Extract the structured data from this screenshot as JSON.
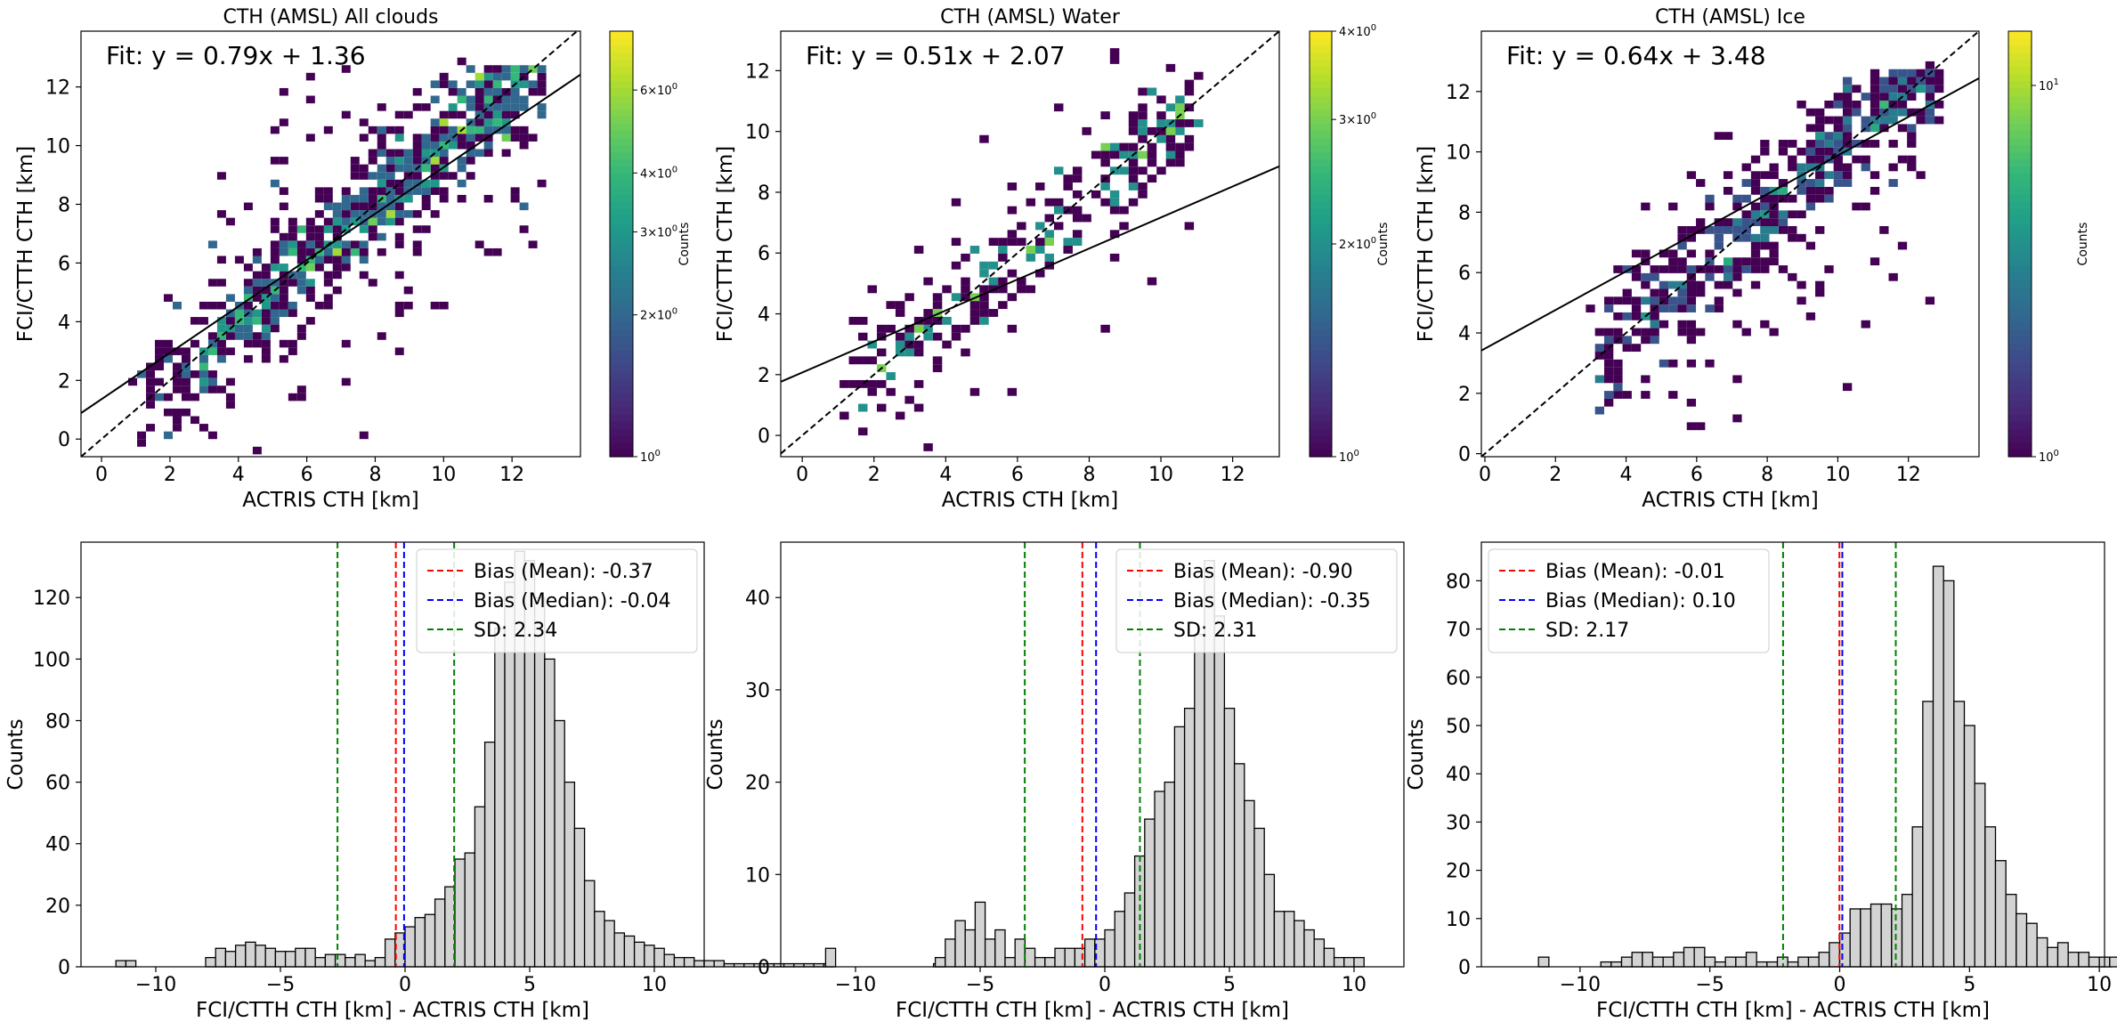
{
  "chart_data": [
    {
      "type": "heatmap",
      "title": "CTH (AMSL) All clouds",
      "xlabel": "ACTRIS CTH [km]",
      "ylabel": "FCI/CTTH CTH [km]",
      "xlim": [
        -0.6,
        14.0
      ],
      "ylim": [
        -0.6,
        13.9
      ],
      "xticks": [
        0,
        2,
        4,
        6,
        8,
        10,
        12
      ],
      "yticks": [
        0,
        2,
        4,
        6,
        8,
        10,
        12
      ],
      "fit": {
        "label": "Fit: y = 0.79x + 1.36",
        "slope": 0.79,
        "intercept": 1.36
      },
      "colorbar": {
        "label": "Counts",
        "scale": "log",
        "min": 1,
        "max": 8,
        "ticks": [
          1,
          2,
          3,
          4,
          6
        ],
        "tick_labels": [
          "10^0",
          "2×10^0",
          "3×10^0",
          "4×10^0",
          "6×10^0"
        ]
      },
      "cluster": {
        "n": 900,
        "xmin": 1.0,
        "xmax": 13.0,
        "noise_sd": 1.4
      }
    },
    {
      "type": "heatmap",
      "title": "CTH (AMSL) Water",
      "xlabel": "ACTRIS CTH [km]",
      "ylabel": "FCI/CTTH CTH [km]",
      "xlim": [
        -0.6,
        13.3
      ],
      "ylim": [
        -0.7,
        13.3
      ],
      "xticks": [
        0,
        2,
        4,
        6,
        8,
        10,
        12
      ],
      "yticks": [
        0,
        2,
        4,
        6,
        8,
        10,
        12
      ],
      "fit": {
        "label": "Fit: y = 0.51x + 2.07",
        "slope": 0.51,
        "intercept": 2.07
      },
      "colorbar": {
        "label": "Counts",
        "scale": "log",
        "min": 1,
        "max": 4,
        "ticks": [
          1,
          2,
          3,
          4
        ],
        "tick_labels": [
          "10^0",
          "2×10^0",
          "3×10^0",
          "4×10^0"
        ]
      },
      "cluster": {
        "n": 300,
        "xmin": 1.0,
        "xmax": 11.0,
        "noise_sd": 1.3
      }
    },
    {
      "type": "heatmap",
      "title": "CTH (AMSL) Ice",
      "xlabel": "ACTRIS CTH [km]",
      "ylabel": "FCI/CTTH CTH [km]",
      "xlim": [
        -0.1,
        14.0
      ],
      "ylim": [
        -0.1,
        14.0
      ],
      "xticks": [
        0,
        2,
        4,
        6,
        8,
        10,
        12
      ],
      "yticks": [
        0,
        2,
        4,
        6,
        8,
        10,
        12
      ],
      "fit": {
        "label": "Fit: y = 0.64x + 3.48",
        "slope": 0.64,
        "intercept": 3.48
      },
      "colorbar": {
        "label": "Counts",
        "scale": "log",
        "min": 1,
        "max": 14,
        "ticks": [
          1,
          10
        ],
        "tick_labels": [
          "10^0",
          "10^1"
        ]
      },
      "cluster": {
        "n": 600,
        "xmin": 3.0,
        "xmax": 13.0,
        "noise_sd": 1.4
      }
    },
    {
      "type": "bar",
      "xlabel": "FCI/CTTH CTH [km] - ACTRIS CTH [km]",
      "ylabel": "Counts",
      "xlim": [
        -13.0,
        12.0
      ],
      "ylim": [
        0,
        138
      ],
      "xticks": [
        -10,
        -5,
        0,
        5,
        10
      ],
      "yticks": [
        0,
        20,
        40,
        60,
        80,
        100,
        120
      ],
      "bin_width": 0.4,
      "bin_start": -11.6,
      "counts": [
        2,
        2,
        0,
        0,
        0,
        0,
        0,
        0,
        0,
        3,
        6,
        5,
        7,
        8,
        7,
        6,
        5,
        5,
        6,
        6,
        3,
        4,
        4,
        3,
        4,
        2,
        3,
        9,
        11,
        13,
        16,
        17,
        22,
        26,
        35,
        37,
        52,
        73,
        110,
        125,
        135,
        132,
        120,
        100,
        80,
        60,
        45,
        28,
        18,
        15,
        11,
        10,
        8,
        7,
        6,
        4,
        3,
        3,
        2,
        2,
        2,
        1,
        1,
        1,
        1,
        1,
        1,
        1,
        1,
        1,
        1,
        1,
        0,
        0,
        0,
        0,
        0,
        0,
        0,
        0,
        0,
        0,
        1
      ],
      "bias_mean": -0.37,
      "bias_median": -0.04,
      "sd": 2.34,
      "legend": [
        "Bias (Mean): -0.37",
        "Bias (Median): -0.04",
        "SD: 2.34"
      ],
      "legend_position": "top-right"
    },
    {
      "type": "bar",
      "xlabel": "FCI/CTTH CTH [km] - ACTRIS CTH [km]",
      "ylabel": "Counts",
      "xlim": [
        -13.0,
        12.0
      ],
      "ylim": [
        0,
        46
      ],
      "xticks": [
        -10,
        -5,
        0,
        5,
        10
      ],
      "yticks": [
        0,
        10,
        20,
        30,
        40
      ],
      "bin_width": 0.4,
      "bin_start": -11.2,
      "counts": [
        2,
        0,
        0,
        0,
        0,
        0,
        0,
        0,
        0,
        0,
        0,
        1,
        3,
        5,
        4,
        7,
        3,
        4,
        1,
        3,
        2,
        1,
        1,
        2,
        2,
        2,
        3,
        3,
        4,
        6,
        8,
        12,
        16,
        19,
        20,
        26,
        28,
        36,
        44,
        38,
        28,
        22,
        18,
        15,
        10,
        6,
        6,
        5,
        4,
        3,
        2,
        1,
        1,
        1,
        0,
        0,
        0,
        0,
        0,
        0,
        0,
        0,
        0,
        0,
        0,
        0,
        0,
        0,
        0,
        0,
        0,
        0,
        0,
        0,
        0,
        0,
        0,
        0,
        0,
        0,
        0,
        0,
        0,
        0,
        0,
        0,
        0,
        0,
        0,
        0,
        0,
        0,
        0,
        0,
        0,
        0,
        0,
        0,
        0,
        0,
        0,
        0,
        0,
        0,
        0,
        0,
        0,
        0,
        0,
        0,
        0,
        0,
        0,
        0,
        0,
        0,
        0,
        0,
        0,
        0,
        0,
        0,
        0,
        0,
        0,
        0,
        0,
        0,
        1
      ],
      "bias_mean": -0.9,
      "bias_median": -0.35,
      "sd": 2.31,
      "legend": [
        "Bias (Mean): -0.90",
        "Bias (Median): -0.35",
        "SD: 2.31"
      ],
      "legend_position": "top-right"
    },
    {
      "type": "bar",
      "xlabel": "FCI/CTTH CTH [km] - ACTRIS CTH [km]",
      "ylabel": "Counts",
      "xlim": [
        -13.8,
        10.2
      ],
      "ylim": [
        0,
        88
      ],
      "xticks": [
        -10,
        -5,
        0,
        5,
        10
      ],
      "yticks": [
        0,
        10,
        20,
        30,
        40,
        50,
        60,
        70,
        80
      ],
      "bin_width": 0.4,
      "bin_start": -11.6,
      "counts": [
        2,
        0,
        0,
        0,
        0,
        0,
        1,
        1,
        2,
        3,
        3,
        2,
        2,
        3,
        4,
        4,
        2,
        1,
        2,
        2,
        3,
        1,
        1,
        2,
        1,
        2,
        2,
        3,
        5,
        7,
        12,
        12,
        13,
        13,
        12,
        15,
        29,
        55,
        83,
        80,
        55,
        50,
        38,
        29,
        22,
        15,
        11,
        9,
        6,
        4,
        5,
        3,
        3,
        2,
        2,
        2,
        1,
        1,
        1,
        2,
        1,
        2,
        1,
        1,
        0
      ],
      "bias_mean": -0.01,
      "bias_median": 0.1,
      "sd": 2.17,
      "legend": [
        "Bias (Mean): -0.01",
        "Bias (Median): 0.10",
        "SD: 2.17"
      ],
      "legend_position": "top-left"
    }
  ]
}
